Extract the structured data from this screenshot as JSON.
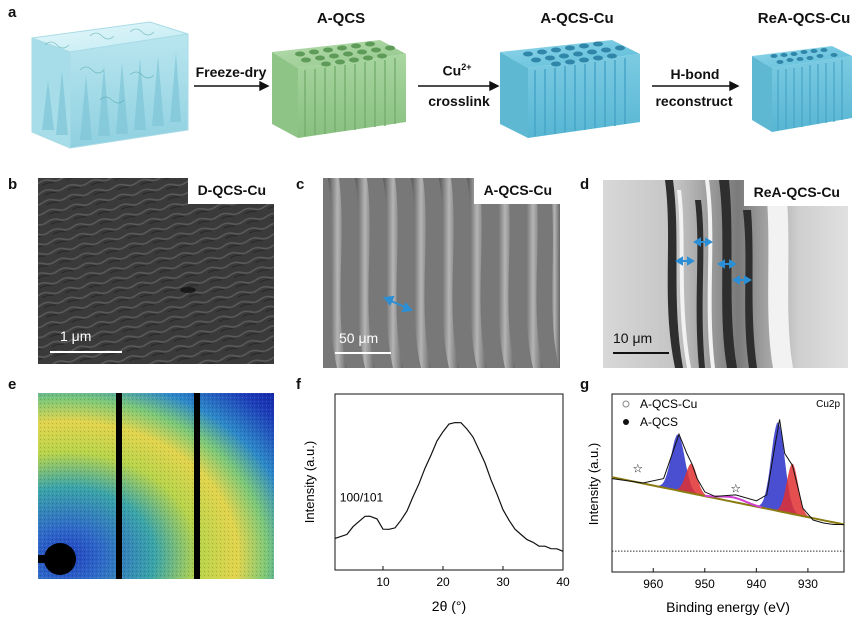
{
  "panel_a": {
    "label": "a",
    "titles": [
      "A-QCS",
      "A-QCS-Cu",
      "ReA-QCS-Cu"
    ],
    "arrows": [
      {
        "line1": "Freeze-dry",
        "line2": ""
      },
      {
        "line1": "Cu",
        "sup": "2+",
        "line2": "crosslink"
      },
      {
        "line1": "H-bond",
        "line2": "reconstruct"
      }
    ]
  },
  "panel_b": {
    "label": "b",
    "tag": "D-QCS-Cu",
    "scale": "1 μm"
  },
  "panel_c": {
    "label": "c",
    "tag": "A-QCS-Cu",
    "scale": "50 μm"
  },
  "panel_d": {
    "label": "d",
    "tag": "ReA-QCS-Cu",
    "scale": "10 μm"
  },
  "panel_e": {
    "label": "e"
  },
  "panel_f": {
    "label": "f"
  },
  "panel_g": {
    "label": "g"
  },
  "chart_data": [
    {
      "type": "line",
      "panel": "f",
      "xlabel": "2θ (°)",
      "ylabel": "Intensity (a.u.)",
      "xlim": [
        2,
        40
      ],
      "xticks": [
        10,
        20,
        30,
        40
      ],
      "yticks": [],
      "annotation": "100/101",
      "series": [
        {
          "x": [
            2,
            4,
            5,
            6,
            7,
            7.8,
            9,
            10,
            11,
            12,
            13,
            14,
            15,
            16,
            17,
            18,
            19,
            20,
            21,
            22,
            23,
            24,
            25,
            26,
            27,
            28,
            29,
            30,
            31,
            32,
            33,
            34,
            35,
            36,
            37,
            38,
            39,
            40
          ],
          "y": [
            0.1,
            0.14,
            0.19,
            0.24,
            0.27,
            0.28,
            0.25,
            0.18,
            0.17,
            0.19,
            0.24,
            0.32,
            0.42,
            0.53,
            0.64,
            0.75,
            0.85,
            0.93,
            0.98,
            1.0,
            0.99,
            0.95,
            0.88,
            0.79,
            0.68,
            0.56,
            0.44,
            0.33,
            0.24,
            0.18,
            0.13,
            0.1,
            0.07,
            0.05,
            0.04,
            0.03,
            0.02,
            0.01
          ]
        }
      ]
    },
    {
      "type": "line",
      "panel": "g",
      "xlabel": "Binding energy (eV)",
      "ylabel": "Intensity (a.u.)",
      "xlim": [
        968,
        923
      ],
      "xticks": [
        960,
        950,
        940,
        930
      ],
      "yticks": [],
      "corner_label": "Cu2p",
      "legend": [
        "A-QCS-Cu",
        "A-QCS"
      ],
      "legend_position": "top-left",
      "satellite_markers": [
        {
          "x": 963,
          "symbol": "☆"
        },
        {
          "x": 944,
          "symbol": "☆"
        }
      ],
      "series": [
        {
          "name": "A-QCS-Cu",
          "x": [
            968,
            962,
            958,
            956.5,
            955,
            953.5,
            952.5,
            951.5,
            950,
            948,
            944,
            940,
            938,
            936.5,
            935.5,
            934.5,
            933,
            932,
            931,
            929,
            927,
            925,
            923
          ],
          "y": [
            0.55,
            0.52,
            0.55,
            0.7,
            0.85,
            0.72,
            0.65,
            0.55,
            0.46,
            0.43,
            0.44,
            0.4,
            0.44,
            0.75,
            0.95,
            0.72,
            0.64,
            0.5,
            0.35,
            0.27,
            0.25,
            0.24,
            0.24
          ]
        },
        {
          "name": "A-QCS",
          "x": [
            968,
            960,
            950,
            940,
            930,
            923
          ],
          "y": [
            0.06,
            0.06,
            0.06,
            0.06,
            0.06,
            0.06
          ]
        }
      ]
    }
  ]
}
